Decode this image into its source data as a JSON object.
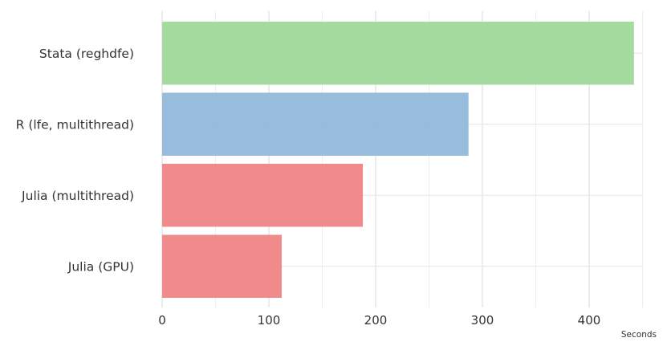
{
  "chart_data": {
    "type": "bar",
    "orientation": "horizontal",
    "categories": [
      "Stata (reghdfe)",
      "R (lfe, multithread)",
      "Julia (multithread)",
      "Julia (GPU)"
    ],
    "values": [
      442,
      287,
      188,
      112
    ],
    "bar_colors": [
      "#a1d99b",
      "#92b8da",
      "#f08585",
      "#f08585"
    ],
    "xlabel": "Seconds",
    "xticks": [
      0,
      100,
      200,
      300,
      400
    ],
    "xlim": [
      0,
      450
    ],
    "grid": true,
    "legend": "none"
  }
}
